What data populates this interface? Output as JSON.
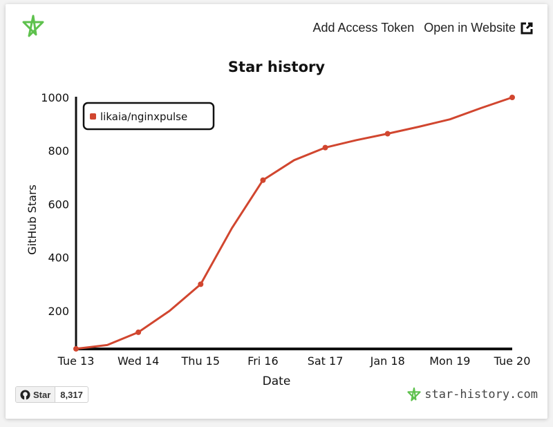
{
  "header": {
    "add_token": "Add Access Token",
    "open_website": "Open in Website"
  },
  "brand_color": "#5ec14d",
  "line_color": "#d1462f",
  "github_button": {
    "label": "Star",
    "count": "8,317"
  },
  "footer": {
    "site": "star-history.com"
  },
  "chart_data": {
    "type": "line",
    "title": "Star history",
    "xlabel": "Date",
    "ylabel": "GitHub Stars",
    "legend": "top-left",
    "x_ticks": [
      "Tue 13",
      "Wed 14",
      "Thu 15",
      "Fri 16",
      "Sat 17",
      "Jan 18",
      "Mon 19",
      "Tue 20"
    ],
    "y_ticks": [
      200,
      400,
      600,
      800,
      1000
    ],
    "ylim": [
      55,
      1000
    ],
    "series": [
      {
        "name": "likaia/nginxpulse",
        "line": [
          [
            0,
            58
          ],
          [
            0.5,
            72
          ],
          [
            1,
            120
          ],
          [
            1.5,
            200
          ],
          [
            2,
            300
          ],
          [
            2.5,
            510
          ],
          [
            3,
            690
          ],
          [
            3.5,
            765
          ],
          [
            4,
            812
          ],
          [
            4.5,
            840
          ],
          [
            5,
            864
          ],
          [
            5.5,
            890
          ],
          [
            6,
            918
          ],
          [
            6.5,
            960
          ],
          [
            7,
            1000
          ]
        ],
        "markers": [
          [
            0,
            58
          ],
          [
            1,
            120
          ],
          [
            2,
            300
          ],
          [
            3,
            690
          ],
          [
            4,
            812
          ],
          [
            5,
            864
          ],
          [
            7,
            1000
          ]
        ]
      }
    ]
  }
}
